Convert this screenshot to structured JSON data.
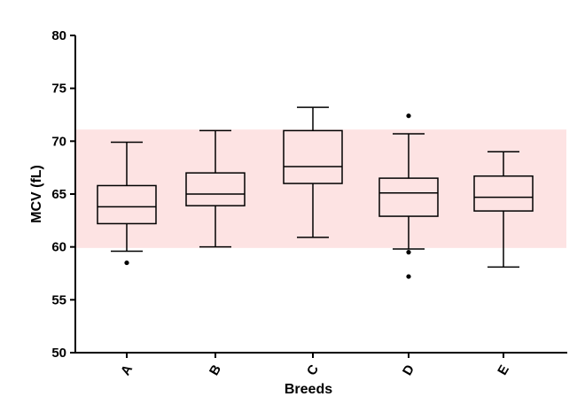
{
  "chart_data": {
    "type": "box",
    "xlabel": "Breeds",
    "ylabel": "MCV (fL)",
    "ylim": [
      50,
      80
    ],
    "yticks": [
      50,
      55,
      60,
      65,
      70,
      75,
      80
    ],
    "reference_band": {
      "low": 59.9,
      "high": 71.1,
      "color": "#fde3e3"
    },
    "categories": [
      "A",
      "B",
      "C",
      "D",
      "E"
    ],
    "boxes": [
      {
        "category": "A",
        "whisker_low": 59.6,
        "q1": 62.2,
        "median": 63.8,
        "q3": 65.8,
        "whisker_high": 69.9,
        "outliers": [
          58.5
        ]
      },
      {
        "category": "B",
        "whisker_low": 60.0,
        "q1": 63.9,
        "median": 65.0,
        "q3": 67.0,
        "whisker_high": 71.0,
        "outliers": []
      },
      {
        "category": "C",
        "whisker_low": 60.9,
        "q1": 66.0,
        "median": 67.6,
        "q3": 71.0,
        "whisker_high": 73.2,
        "outliers": []
      },
      {
        "category": "D",
        "whisker_low": 59.8,
        "q1": 62.9,
        "median": 65.1,
        "q3": 66.5,
        "whisker_high": 70.7,
        "outliers": [
          59.5,
          57.2,
          72.4
        ]
      },
      {
        "category": "E",
        "whisker_low": 58.1,
        "q1": 63.4,
        "median": 64.7,
        "q3": 66.7,
        "whisker_high": 69.0,
        "outliers": []
      }
    ]
  }
}
